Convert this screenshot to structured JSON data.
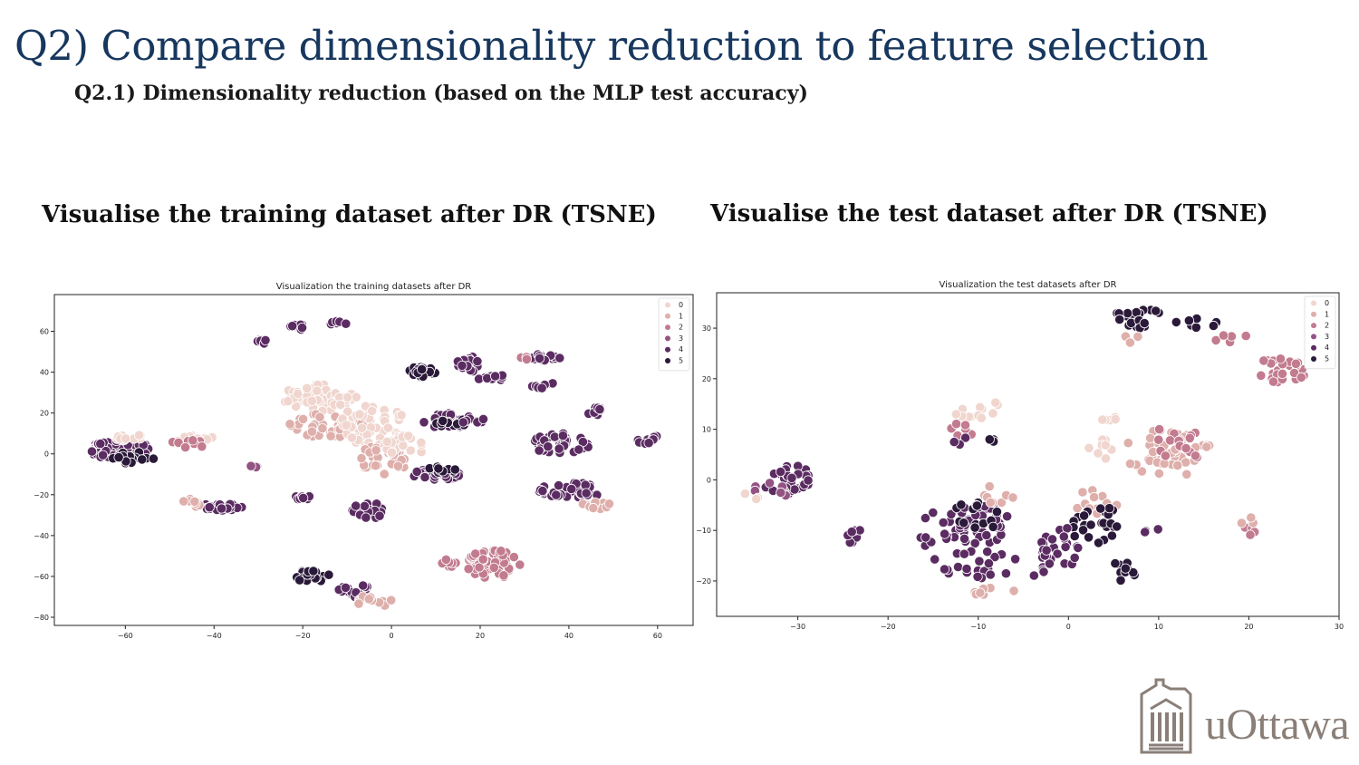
{
  "slide": {
    "title": "Q2) Compare dimensionality reduction to feature selection",
    "subtitle": "Q2.1) Dimensionality reduction  (based on the MLP test accuracy)",
    "caption_train": "Visualise the training dataset after DR (TSNE)",
    "caption_test": "Visualise the test  dataset after DR (TSNE)",
    "logo_text": "uOttawa"
  },
  "chart_data": [
    {
      "type": "scatter",
      "title": "Visualization the training datasets after DR",
      "xlabel": "",
      "ylabel": "",
      "xlim": [
        -76,
        68
      ],
      "ylim": [
        -84,
        78
      ],
      "xticks": [
        -60,
        -40,
        -20,
        0,
        20,
        40,
        60
      ],
      "yticks": [
        -80,
        -60,
        -40,
        -20,
        0,
        20,
        40,
        60
      ],
      "grid": false,
      "legend_position": "top-right",
      "legend": [
        "0",
        "1",
        "2",
        "3",
        "4",
        "5"
      ],
      "colors": [
        "#f0d6cf",
        "#deafab",
        "#c27b8f",
        "#935383",
        "#5b2c62",
        "#2a1939"
      ],
      "clusters": [
        {
          "label": 4,
          "cx": -61,
          "cy": 2,
          "rx": 7,
          "ry": 5,
          "n": 55
        },
        {
          "label": 5,
          "cx": -58,
          "cy": -2,
          "rx": 5,
          "ry": 3,
          "n": 15
        },
        {
          "label": 0,
          "cx": -59,
          "cy": 8,
          "rx": 4,
          "ry": 2,
          "n": 10
        },
        {
          "label": 0,
          "cx": -45,
          "cy": 7,
          "rx": 6,
          "ry": 2,
          "n": 18
        },
        {
          "label": 2,
          "cx": -46,
          "cy": 5,
          "rx": 5,
          "ry": 2,
          "n": 8
        },
        {
          "label": 4,
          "cx": -38,
          "cy": -26,
          "rx": 5,
          "ry": 2,
          "n": 25
        },
        {
          "label": 1,
          "cx": -45,
          "cy": -24,
          "rx": 3,
          "ry": 2,
          "n": 10
        },
        {
          "label": 4,
          "cx": -29,
          "cy": 55,
          "rx": 2,
          "ry": 1,
          "n": 8
        },
        {
          "label": 4,
          "cx": -21,
          "cy": 62,
          "rx": 2,
          "ry": 1.5,
          "n": 10
        },
        {
          "label": 4,
          "cx": -12,
          "cy": 64,
          "rx": 2,
          "ry": 1,
          "n": 8
        },
        {
          "label": 3,
          "cx": -31,
          "cy": -6,
          "rx": 1,
          "ry": 1,
          "n": 3
        },
        {
          "label": 4,
          "cx": -20,
          "cy": -21,
          "rx": 2,
          "ry": 1.5,
          "n": 10
        },
        {
          "label": 0,
          "cx": -16,
          "cy": 28,
          "rx": 9,
          "ry": 7,
          "n": 70
        },
        {
          "label": 1,
          "cx": -14,
          "cy": 14,
          "rx": 9,
          "ry": 6,
          "n": 40
        },
        {
          "label": 0,
          "cx": -4,
          "cy": 14,
          "rx": 8,
          "ry": 10,
          "n": 55
        },
        {
          "label": 1,
          "cx": -2,
          "cy": -3,
          "rx": 6,
          "ry": 7,
          "n": 30
        },
        {
          "label": 0,
          "cx": 3,
          "cy": 4,
          "rx": 5,
          "ry": 5,
          "n": 20
        },
        {
          "label": 5,
          "cx": 7,
          "cy": 40,
          "rx": 3,
          "ry": 3,
          "n": 20
        },
        {
          "label": 4,
          "cx": 12,
          "cy": 16,
          "rx": 5,
          "ry": 4,
          "n": 25
        },
        {
          "label": 5,
          "cx": 14,
          "cy": 15,
          "rx": 4,
          "ry": 2,
          "n": 12
        },
        {
          "label": 4,
          "cx": 10,
          "cy": -10,
          "rx": 6,
          "ry": 3,
          "n": 30
        },
        {
          "label": 5,
          "cx": 12,
          "cy": -8,
          "rx": 4,
          "ry": 2,
          "n": 10
        },
        {
          "label": 4,
          "cx": -5,
          "cy": -28,
          "rx": 4,
          "ry": 4,
          "n": 25
        },
        {
          "label": 4,
          "cx": 17,
          "cy": 44,
          "rx": 3,
          "ry": 4,
          "n": 18
        },
        {
          "label": 4,
          "cx": 23,
          "cy": 37,
          "rx": 4,
          "ry": 2,
          "n": 12
        },
        {
          "label": 4,
          "cx": 19,
          "cy": 16,
          "rx": 3,
          "ry": 3,
          "n": 12
        },
        {
          "label": 4,
          "cx": 34,
          "cy": 47,
          "rx": 4,
          "ry": 2,
          "n": 15
        },
        {
          "label": 2,
          "cx": 31,
          "cy": 47,
          "rx": 2,
          "ry": 1,
          "n": 4
        },
        {
          "label": 4,
          "cx": 34,
          "cy": 34,
          "rx": 3,
          "ry": 2,
          "n": 10
        },
        {
          "label": 4,
          "cx": 38,
          "cy": 5,
          "rx": 7,
          "ry": 5,
          "n": 40
        },
        {
          "label": 4,
          "cx": 40,
          "cy": -18,
          "rx": 8,
          "ry": 4,
          "n": 45
        },
        {
          "label": 1,
          "cx": 46,
          "cy": -25,
          "rx": 4,
          "ry": 2,
          "n": 10
        },
        {
          "label": 4,
          "cx": 46,
          "cy": 21,
          "rx": 2,
          "ry": 2,
          "n": 8
        },
        {
          "label": 4,
          "cx": 58,
          "cy": 7,
          "rx": 3,
          "ry": 2,
          "n": 10
        },
        {
          "label": 2,
          "cx": 23,
          "cy": -54,
          "rx": 6,
          "ry": 7,
          "n": 55
        },
        {
          "label": 2,
          "cx": 13,
          "cy": -53,
          "rx": 2,
          "ry": 3,
          "n": 8
        },
        {
          "label": 5,
          "cx": -18,
          "cy": -60,
          "rx": 4,
          "ry": 3,
          "n": 25
        },
        {
          "label": 4,
          "cx": -8,
          "cy": -67,
          "rx": 4,
          "ry": 3,
          "n": 15
        },
        {
          "label": 1,
          "cx": -4,
          "cy": -72,
          "rx": 4,
          "ry": 3,
          "n": 15
        }
      ]
    },
    {
      "type": "scatter",
      "title": "Visualization the test datasets after DR",
      "xlabel": "",
      "ylabel": "",
      "xlim": [
        -39,
        30
      ],
      "ylim": [
        -27,
        37
      ],
      "xticks": [
        -30,
        -20,
        -10,
        0,
        10,
        20,
        30
      ],
      "yticks": [
        -20,
        -10,
        0,
        10,
        20,
        30
      ],
      "grid": false,
      "legend_position": "top-right",
      "legend": [
        "0",
        "1",
        "2",
        "3",
        "4",
        "5"
      ],
      "colors": [
        "#f0d6cf",
        "#deafab",
        "#c27b8f",
        "#935383",
        "#5b2c62",
        "#2a1939"
      ],
      "clusters": [
        {
          "label": 5,
          "cx": 8,
          "cy": 32,
          "rx": 3,
          "ry": 2,
          "n": 22
        },
        {
          "label": 5,
          "cx": 14,
          "cy": 31,
          "rx": 3,
          "ry": 1,
          "n": 8
        },
        {
          "label": 1,
          "cx": 7,
          "cy": 28,
          "rx": 1,
          "ry": 1,
          "n": 3
        },
        {
          "label": 2,
          "cx": 18,
          "cy": 28,
          "rx": 2,
          "ry": 1,
          "n": 5
        },
        {
          "label": 2,
          "cx": 24,
          "cy": 22,
          "rx": 3,
          "ry": 3,
          "n": 30
        },
        {
          "label": 1,
          "cx": 11,
          "cy": 5,
          "rx": 5,
          "ry": 5,
          "n": 50
        },
        {
          "label": 2,
          "cx": 12,
          "cy": 7,
          "rx": 3,
          "ry": 4,
          "n": 15
        },
        {
          "label": 1,
          "cx": 3,
          "cy": -4,
          "rx": 3,
          "ry": 3,
          "n": 15
        },
        {
          "label": 0,
          "cx": 4,
          "cy": 6,
          "rx": 2,
          "ry": 2,
          "n": 8
        },
        {
          "label": 0,
          "cx": 5,
          "cy": 12,
          "rx": 1.5,
          "ry": 0.5,
          "n": 5
        },
        {
          "label": 0,
          "cx": -10,
          "cy": 14,
          "rx": 3,
          "ry": 2,
          "n": 12
        },
        {
          "label": 2,
          "cx": -11,
          "cy": 10,
          "rx": 2,
          "ry": 2,
          "n": 6
        },
        {
          "label": 5,
          "cx": -8,
          "cy": 8,
          "rx": 1,
          "ry": 0.5,
          "n": 4
        },
        {
          "label": 4,
          "cx": -12,
          "cy": 8,
          "rx": 1,
          "ry": 1,
          "n": 3
        },
        {
          "label": 4,
          "cx": -31,
          "cy": 0,
          "rx": 3,
          "ry": 3,
          "n": 30
        },
        {
          "label": 3,
          "cx": -33,
          "cy": -2,
          "rx": 2,
          "ry": 2,
          "n": 8
        },
        {
          "label": 0,
          "cx": -35,
          "cy": -3,
          "rx": 1,
          "ry": 1,
          "n": 3
        },
        {
          "label": 4,
          "cx": -24,
          "cy": -11,
          "rx": 1.5,
          "ry": 1.5,
          "n": 8
        },
        {
          "label": 4,
          "cx": -10,
          "cy": -9,
          "rx": 4,
          "ry": 4,
          "n": 40
        },
        {
          "label": 5,
          "cx": -10,
          "cy": -7,
          "rx": 3,
          "ry": 3,
          "n": 15
        },
        {
          "label": 1,
          "cx": -8,
          "cy": -3,
          "rx": 2,
          "ry": 2,
          "n": 8
        },
        {
          "label": 4,
          "cx": -10,
          "cy": -17,
          "rx": 4,
          "ry": 3,
          "n": 22
        },
        {
          "label": 1,
          "cx": -9,
          "cy": -22,
          "rx": 3,
          "ry": 1,
          "n": 8
        },
        {
          "label": 4,
          "cx": -15,
          "cy": -11,
          "rx": 2,
          "ry": 5,
          "n": 10
        },
        {
          "label": 5,
          "cx": 3,
          "cy": -9,
          "rx": 3,
          "ry": 4,
          "n": 25
        },
        {
          "label": 4,
          "cx": 0,
          "cy": -13,
          "rx": 3,
          "ry": 4,
          "n": 20
        },
        {
          "label": 5,
          "cx": 6,
          "cy": -18,
          "rx": 1.5,
          "ry": 2,
          "n": 10
        },
        {
          "label": 4,
          "cx": -4,
          "cy": -16,
          "rx": 3,
          "ry": 3,
          "n": 10
        },
        {
          "label": 4,
          "cx": 9,
          "cy": -10,
          "rx": 1,
          "ry": 1,
          "n": 3
        },
        {
          "label": 2,
          "cx": 20,
          "cy": -10,
          "rx": 1,
          "ry": 1,
          "n": 4
        },
        {
          "label": 1,
          "cx": 20,
          "cy": -8,
          "rx": 1,
          "ry": 1,
          "n": 3
        }
      ]
    }
  ]
}
